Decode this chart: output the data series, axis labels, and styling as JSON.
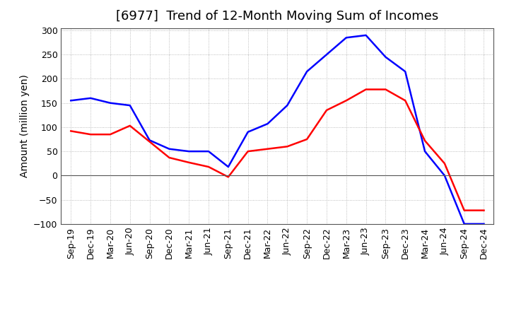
{
  "title": "[6977]  Trend of 12-Month Moving Sum of Incomes",
  "ylabel": "Amount (million yen)",
  "ylim": [
    -100,
    305
  ],
  "yticks": [
    -100,
    -50,
    0,
    50,
    100,
    150,
    200,
    250,
    300
  ],
  "x_labels": [
    "Sep-19",
    "Dec-19",
    "Mar-20",
    "Jun-20",
    "Sep-20",
    "Dec-20",
    "Mar-21",
    "Jun-21",
    "Sep-21",
    "Dec-21",
    "Mar-22",
    "Jun-22",
    "Sep-22",
    "Dec-22",
    "Mar-23",
    "Jun-23",
    "Sep-23",
    "Dec-23",
    "Mar-24",
    "Jun-24",
    "Sep-24",
    "Dec-24"
  ],
  "ordinary_income": {
    "color": "#0000FF",
    "y": [
      155,
      160,
      150,
      145,
      73,
      55,
      50,
      50,
      18,
      90,
      107,
      145,
      215,
      250,
      285,
      290,
      245,
      215,
      50,
      0,
      -100,
      -100
    ]
  },
  "net_income": {
    "color": "#FF0000",
    "y": [
      92,
      85,
      85,
      103,
      70,
      37,
      27,
      18,
      -3,
      50,
      55,
      60,
      75,
      135,
      155,
      178,
      178,
      155,
      72,
      25,
      -72,
      -72
    ]
  },
  "background_color": "#ffffff",
  "grid_color": "#aaaaaa",
  "title_fontsize": 13,
  "axis_label_fontsize": 10,
  "tick_fontsize": 9,
  "legend_fontsize": 10,
  "line_width": 1.8
}
